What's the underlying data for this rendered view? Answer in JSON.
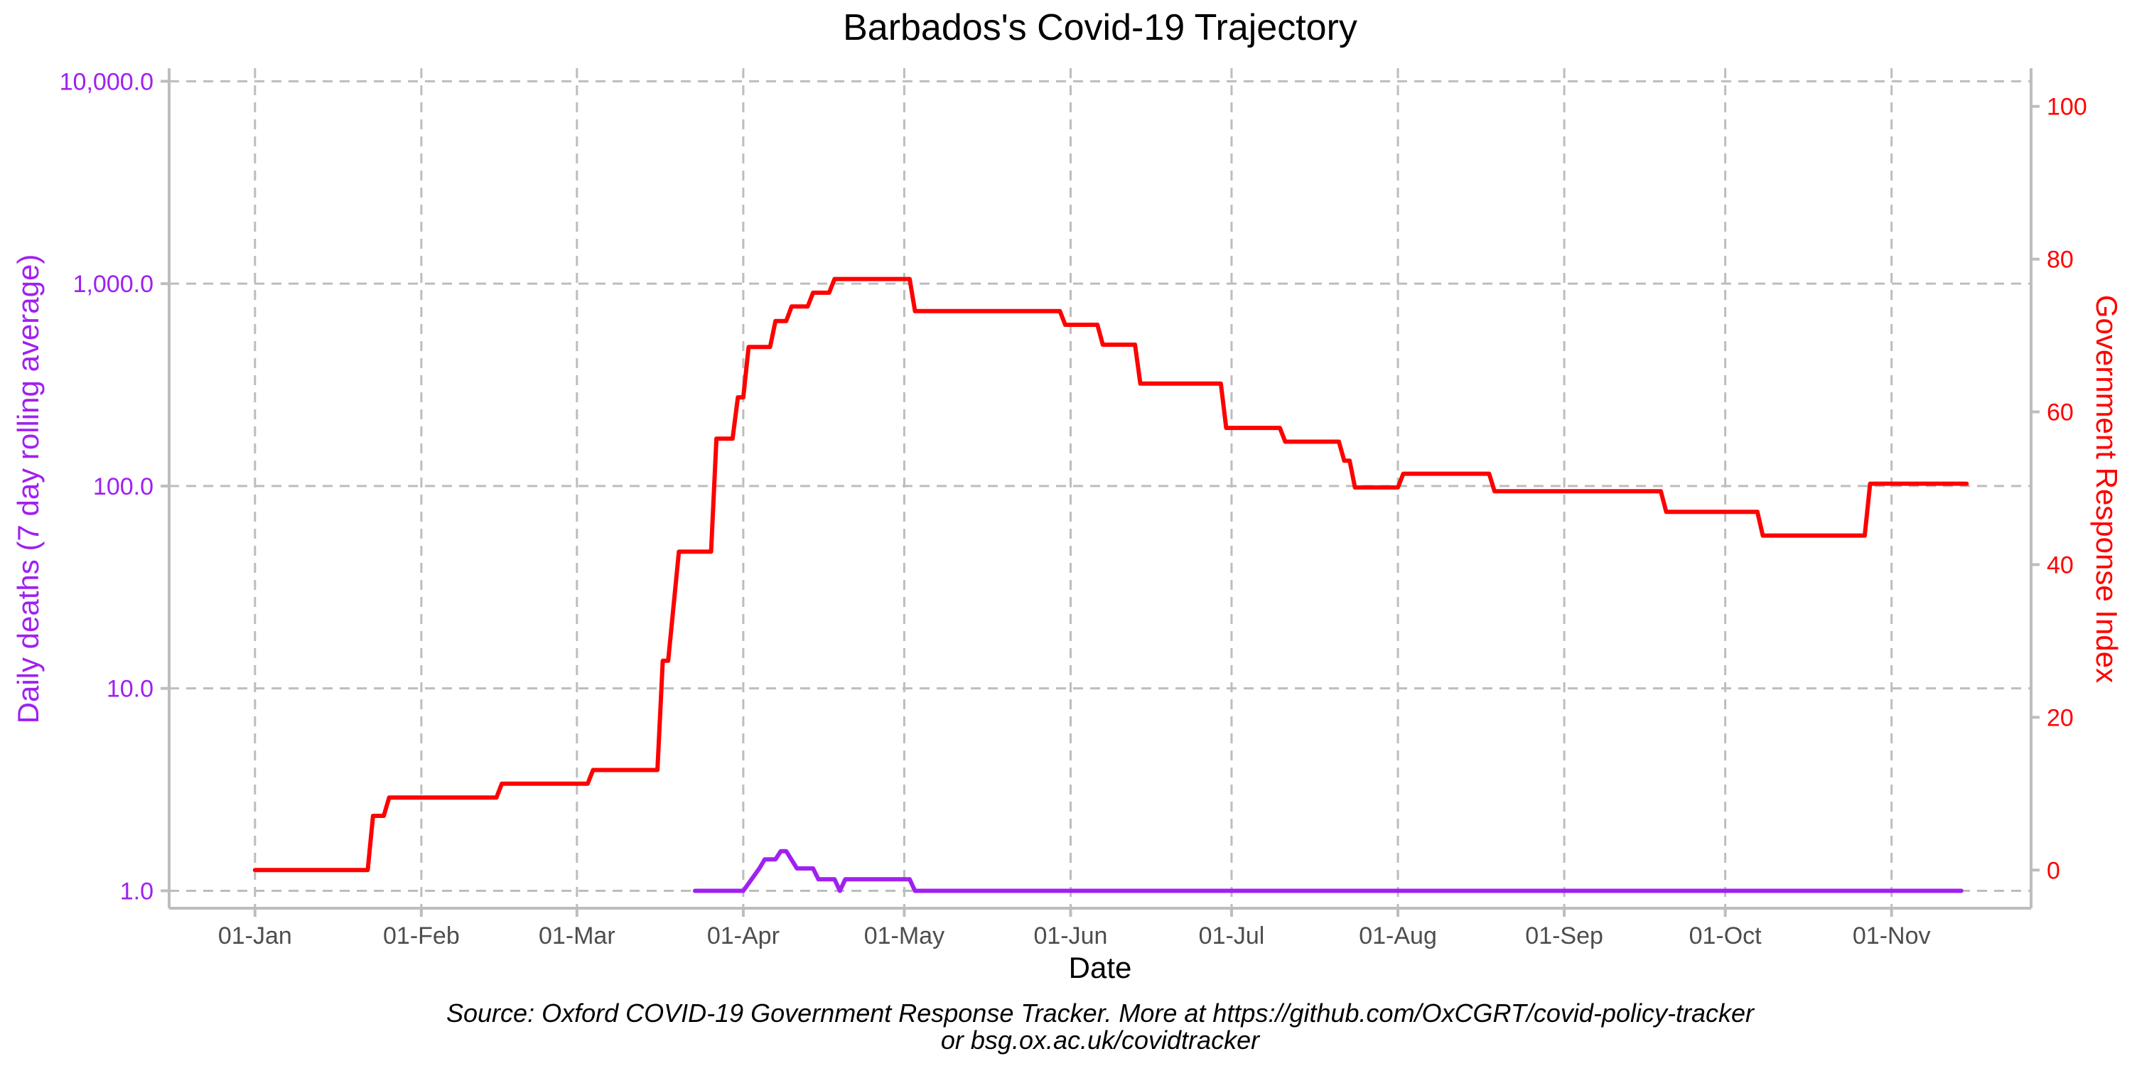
{
  "title": "Barbados's Covid-19 Trajectory",
  "caption_line1": "Source: Oxford COVID-19 Government Response Tracker. More at https://github.com/OxCGRT/covid-policy-tracker",
  "caption_line2": "or bsg.ox.ac.uk/covidtracker",
  "colors": {
    "deaths": "#a020f0",
    "response": "#ff0000",
    "grid": "#bdbdbd",
    "xtick": "#4d4d4d"
  },
  "chart_data": {
    "type": "line",
    "xlabel": "Date",
    "ylabel_left": "Daily deaths (7 day rolling average)",
    "ylabel_right": "Government Response Index",
    "x_ticks": [
      "01-Jan",
      "01-Feb",
      "01-Mar",
      "01-Apr",
      "01-May",
      "01-Jun",
      "01-Jul",
      "01-Aug",
      "01-Sep",
      "01-Oct",
      "01-Nov"
    ],
    "x_tick_dates": [
      "2020-01-01",
      "2020-02-01",
      "2020-03-01",
      "2020-04-01",
      "2020-05-01",
      "2020-06-01",
      "2020-07-01",
      "2020-08-01",
      "2020-09-01",
      "2020-10-01",
      "2020-11-01"
    ],
    "xlim": [
      "2019-12-16",
      "2020-11-27"
    ],
    "y_left_scale": "log10",
    "y_left_ticks": [
      "1.0",
      "10.0",
      "100.0",
      "1,000.0",
      "10,000.0"
    ],
    "y_left_tick_values": [
      1,
      10,
      100,
      1000,
      10000
    ],
    "y_left_lim": [
      0.82,
      11600
    ],
    "y_right_ticks": [
      "0",
      "20",
      "40",
      "60",
      "80",
      "100"
    ],
    "y_right_tick_values": [
      0,
      20,
      40,
      60,
      80,
      100
    ],
    "y_right_lim": [
      -5,
      105
    ],
    "grid": true,
    "series": [
      {
        "name": "Government Response Index",
        "axis": "right",
        "step": true,
        "points": [
          [
            "2020-01-01",
            0
          ],
          [
            "2020-01-22",
            0
          ],
          [
            "2020-01-23",
            7.1
          ],
          [
            "2020-01-25",
            7.1
          ],
          [
            "2020-01-26",
            9.5
          ],
          [
            "2020-02-15",
            9.5
          ],
          [
            "2020-02-16",
            11.3
          ],
          [
            "2020-03-03",
            11.3
          ],
          [
            "2020-03-04",
            13.1
          ],
          [
            "2020-03-16",
            13.1
          ],
          [
            "2020-03-17",
            27.4
          ],
          [
            "2020-03-18",
            27.4
          ],
          [
            "2020-03-20",
            41.7
          ],
          [
            "2020-03-26",
            41.7
          ],
          [
            "2020-03-27",
            56.5
          ],
          [
            "2020-03-30",
            56.5
          ],
          [
            "2020-03-31",
            61.9
          ],
          [
            "2020-04-01",
            61.9
          ],
          [
            "2020-04-02",
            68.5
          ],
          [
            "2020-04-06",
            68.5
          ],
          [
            "2020-04-07",
            71.9
          ],
          [
            "2020-04-09",
            71.9
          ],
          [
            "2020-04-10",
            73.8
          ],
          [
            "2020-04-13",
            73.8
          ],
          [
            "2020-04-14",
            75.6
          ],
          [
            "2020-04-17",
            75.6
          ],
          [
            "2020-04-18",
            77.4
          ],
          [
            "2020-05-02",
            77.4
          ],
          [
            "2020-05-03",
            73.2
          ],
          [
            "2020-05-30",
            73.2
          ],
          [
            "2020-05-31",
            71.4
          ],
          [
            "2020-06-06",
            71.4
          ],
          [
            "2020-06-07",
            68.8
          ],
          [
            "2020-06-13",
            68.8
          ],
          [
            "2020-06-14",
            63.7
          ],
          [
            "2020-06-29",
            63.7
          ],
          [
            "2020-06-30",
            57.9
          ],
          [
            "2020-07-10",
            57.9
          ],
          [
            "2020-07-11",
            56.1
          ],
          [
            "2020-07-21",
            56.1
          ],
          [
            "2020-07-22",
            53.6
          ],
          [
            "2020-07-23",
            53.6
          ],
          [
            "2020-07-24",
            50.1
          ],
          [
            "2020-08-01",
            50.1
          ],
          [
            "2020-08-02",
            51.9
          ],
          [
            "2020-08-18",
            51.9
          ],
          [
            "2020-08-19",
            49.6
          ],
          [
            "2020-09-19",
            49.6
          ],
          [
            "2020-09-20",
            46.9
          ],
          [
            "2020-10-07",
            46.9
          ],
          [
            "2020-10-08",
            43.8
          ],
          [
            "2020-10-27",
            43.8
          ],
          [
            "2020-10-28",
            50.6
          ],
          [
            "2020-11-15",
            50.6
          ]
        ]
      },
      {
        "name": "Daily deaths (7 day rolling average)",
        "axis": "left",
        "step": false,
        "points": [
          [
            "2020-03-23",
            1.0
          ],
          [
            "2020-04-01",
            1.0
          ],
          [
            "2020-04-04",
            1.29
          ],
          [
            "2020-04-05",
            1.43
          ],
          [
            "2020-04-07",
            1.43
          ],
          [
            "2020-04-08",
            1.57
          ],
          [
            "2020-04-09",
            1.57
          ],
          [
            "2020-04-11",
            1.29
          ],
          [
            "2020-04-14",
            1.29
          ],
          [
            "2020-04-15",
            1.14
          ],
          [
            "2020-04-18",
            1.14
          ],
          [
            "2020-04-19",
            1.0
          ],
          [
            "2020-04-20",
            1.14
          ],
          [
            "2020-05-02",
            1.14
          ],
          [
            "2020-05-03",
            1.0
          ],
          [
            "2020-11-14",
            1.0
          ]
        ]
      }
    ]
  }
}
